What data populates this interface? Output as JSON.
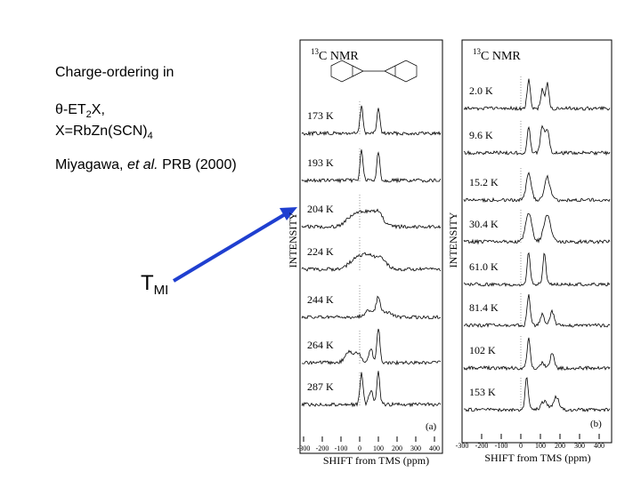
{
  "slide": {
    "heading": "Charge-ordering in",
    "formula_line": {
      "prefix": "θ-ET",
      "sub": "2",
      "suffix": "X,"
    },
    "composition": {
      "prefix": "X=RbZn(SCN)",
      "sub": "4"
    },
    "citation": {
      "author": "Miyagawa,",
      "etal": "et al.",
      "journal": "PRB (2000)"
    },
    "transition": {
      "symbol": "T",
      "sub": "MI"
    }
  },
  "panels": [
    {
      "title_sup": "13",
      "title": "C NMR",
      "ylabel": "INTENSITY",
      "xlabel": "SHIFT from TMS (ppm)",
      "xticks": [
        "-300",
        "-200",
        "-100",
        "0",
        "100",
        "200",
        "300",
        "400"
      ],
      "tag": "(a)",
      "temperatures": [
        "173 K",
        "193 K",
        "204 K",
        "224 K",
        "244 K",
        "264 K",
        "287 K"
      ]
    },
    {
      "title_sup": "13",
      "title": "C NMR",
      "ylabel": "INTENSITY",
      "xlabel": "SHIFT from TMS (ppm)",
      "xticks": [
        "-300",
        "-200",
        "-100",
        "0",
        "100",
        "200",
        "300",
        "400"
      ],
      "tag": "(b)",
      "temperatures": [
        "2.0 K",
        "9.6 K",
        "15.2 K",
        "30.4 K",
        "61.0 K",
        "81.4 K",
        "102 K",
        "153 K"
      ]
    }
  ]
}
